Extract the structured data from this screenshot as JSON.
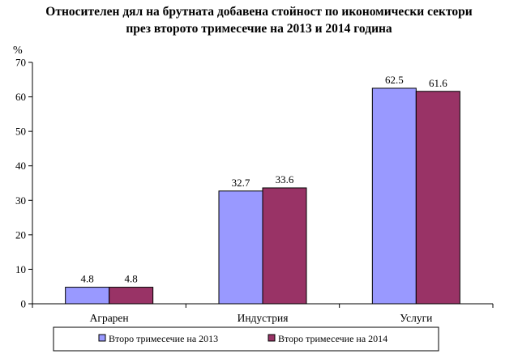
{
  "chart_data": {
    "type": "bar",
    "title": [
      "Относителен дял на брутната добавена стойност по икономически сектори",
      "през второто тримесечие на 2013 и 2014 година"
    ],
    "ylabel": "%",
    "xlabel": "",
    "ylim": [
      0,
      70
    ],
    "yticks": [
      0,
      10,
      20,
      30,
      40,
      50,
      60,
      70
    ],
    "categories": [
      "Аграрен",
      "Индустрия",
      "Услуги"
    ],
    "series": [
      {
        "name": "Второ тримесечие на 2013",
        "values": [
          4.8,
          32.7,
          62.5
        ],
        "color": "#9999ff"
      },
      {
        "name": "Второ тримесечие на 2014",
        "values": [
          4.8,
          33.6,
          61.6
        ],
        "color": "#993366"
      }
    ],
    "data_labels": [
      [
        "4.8",
        "32.7",
        "62.5"
      ],
      [
        "4.8",
        "33.6",
        "61.6"
      ]
    ],
    "grid": false,
    "legend_position": "bottom"
  }
}
